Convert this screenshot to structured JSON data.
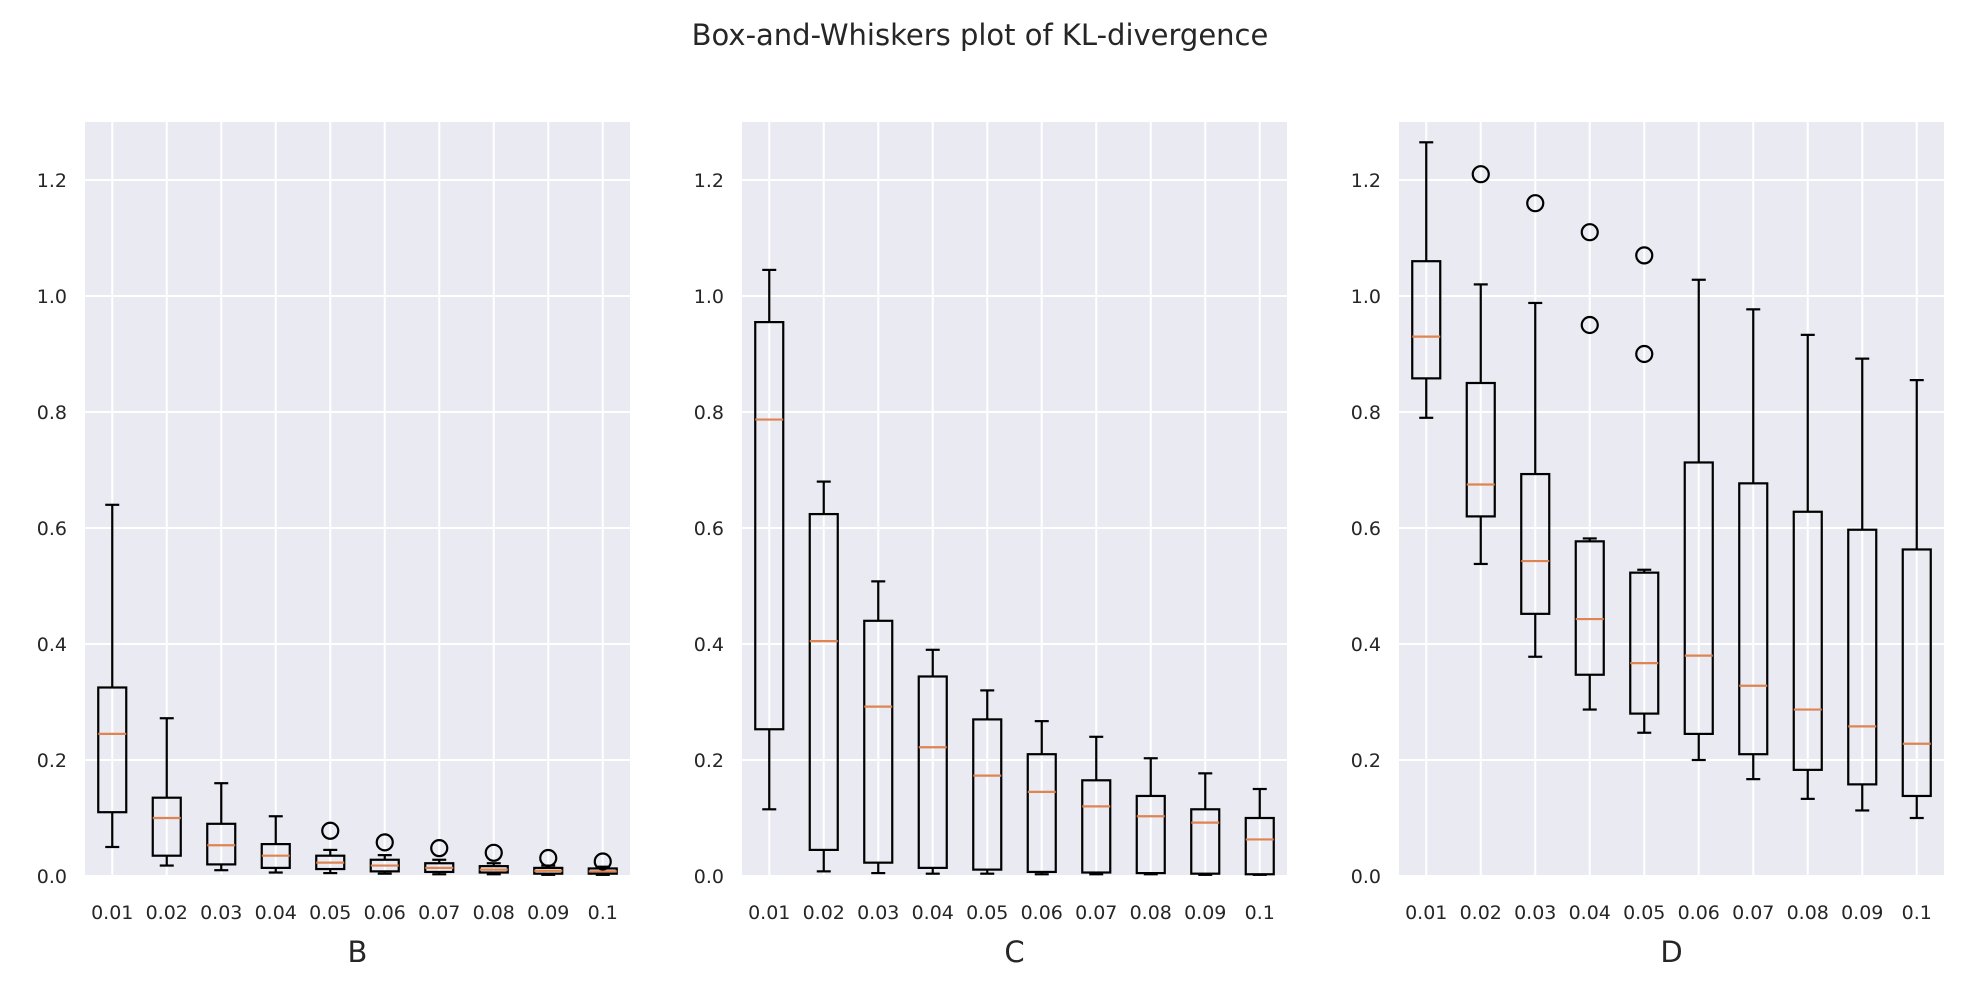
{
  "title": "Box-and-Whiskers plot of KL-divergence",
  "colors": {
    "axes_bg": "#EAEAF2",
    "grid": "#FFFFFF",
    "box": "#000000",
    "median": "#DD8452",
    "text": "#262626"
  },
  "chart_data": [
    {
      "type": "box",
      "xlabel": "B",
      "ylabel": "",
      "ylim": [
        0,
        1.3
      ],
      "yticks": [
        "0.0",
        "0.2",
        "0.4",
        "0.6",
        "0.8",
        "1.0",
        "1.2"
      ],
      "ytick_values": [
        0,
        0.2,
        0.4,
        0.6,
        0.8,
        1.0,
        1.2
      ],
      "grid": true,
      "categories": [
        "0.01",
        "0.02",
        "0.03",
        "0.04",
        "0.05",
        "0.06",
        "0.07",
        "0.08",
        "0.09",
        "0.1"
      ],
      "boxes": [
        {
          "whislo": 0.05,
          "q1": 0.11,
          "med": 0.245,
          "q3": 0.325,
          "whishi": 0.64,
          "fliers": []
        },
        {
          "whislo": 0.018,
          "q1": 0.035,
          "med": 0.1,
          "q3": 0.135,
          "whishi": 0.272,
          "fliers": []
        },
        {
          "whislo": 0.01,
          "q1": 0.02,
          "med": 0.053,
          "q3": 0.09,
          "whishi": 0.16,
          "fliers": []
        },
        {
          "whislo": 0.006,
          "q1": 0.014,
          "med": 0.035,
          "q3": 0.055,
          "whishi": 0.103,
          "fliers": []
        },
        {
          "whislo": 0.005,
          "q1": 0.012,
          "med": 0.023,
          "q3": 0.035,
          "whishi": 0.045,
          "fliers": [
            0.078
          ]
        },
        {
          "whislo": 0.004,
          "q1": 0.008,
          "med": 0.018,
          "q3": 0.028,
          "whishi": 0.036,
          "fliers": [
            0.058
          ]
        },
        {
          "whislo": 0.003,
          "q1": 0.007,
          "med": 0.014,
          "q3": 0.022,
          "whishi": 0.028,
          "fliers": [
            0.048
          ]
        },
        {
          "whislo": 0.003,
          "q1": 0.006,
          "med": 0.011,
          "q3": 0.017,
          "whishi": 0.022,
          "fliers": [
            0.04
          ]
        },
        {
          "whislo": 0.002,
          "q1": 0.004,
          "med": 0.009,
          "q3": 0.014,
          "whishi": 0.018,
          "fliers": [
            0.031
          ]
        },
        {
          "whislo": 0.002,
          "q1": 0.004,
          "med": 0.008,
          "q3": 0.013,
          "whishi": 0.016,
          "fliers": [
            0.025
          ]
        }
      ]
    },
    {
      "type": "box",
      "xlabel": "C",
      "ylabel": "",
      "ylim": [
        0,
        1.3
      ],
      "yticks": [
        "0.0",
        "0.2",
        "0.4",
        "0.6",
        "0.8",
        "1.0",
        "1.2"
      ],
      "ytick_values": [
        0,
        0.2,
        0.4,
        0.6,
        0.8,
        1.0,
        1.2
      ],
      "grid": true,
      "categories": [
        "0.01",
        "0.02",
        "0.03",
        "0.04",
        "0.05",
        "0.06",
        "0.07",
        "0.08",
        "0.09",
        "0.1"
      ],
      "boxes": [
        {
          "whislo": 0.115,
          "q1": 0.253,
          "med": 0.787,
          "q3": 0.955,
          "whishi": 1.045,
          "fliers": []
        },
        {
          "whislo": 0.008,
          "q1": 0.045,
          "med": 0.405,
          "q3": 0.624,
          "whishi": 0.68,
          "fliers": []
        },
        {
          "whislo": 0.005,
          "q1": 0.023,
          "med": 0.292,
          "q3": 0.44,
          "whishi": 0.508,
          "fliers": []
        },
        {
          "whislo": 0.004,
          "q1": 0.014,
          "med": 0.222,
          "q3": 0.344,
          "whishi": 0.39,
          "fliers": []
        },
        {
          "whislo": 0.004,
          "q1": 0.011,
          "med": 0.173,
          "q3": 0.27,
          "whishi": 0.32,
          "fliers": []
        },
        {
          "whislo": 0.003,
          "q1": 0.007,
          "med": 0.145,
          "q3": 0.21,
          "whishi": 0.267,
          "fliers": []
        },
        {
          "whislo": 0.003,
          "q1": 0.006,
          "med": 0.12,
          "q3": 0.165,
          "whishi": 0.24,
          "fliers": []
        },
        {
          "whislo": 0.003,
          "q1": 0.005,
          "med": 0.103,
          "q3": 0.138,
          "whishi": 0.203,
          "fliers": []
        },
        {
          "whislo": 0.002,
          "q1": 0.004,
          "med": 0.092,
          "q3": 0.115,
          "whishi": 0.177,
          "fliers": []
        },
        {
          "whislo": 0.002,
          "q1": 0.003,
          "med": 0.063,
          "q3": 0.1,
          "whishi": 0.15,
          "fliers": []
        }
      ]
    },
    {
      "type": "box",
      "xlabel": "D",
      "ylabel": "",
      "ylim": [
        0,
        1.3
      ],
      "yticks": [
        "0.0",
        "0.2",
        "0.4",
        "0.6",
        "0.8",
        "1.0",
        "1.2"
      ],
      "ytick_values": [
        0,
        0.2,
        0.4,
        0.6,
        0.8,
        1.0,
        1.2
      ],
      "grid": true,
      "categories": [
        "0.01",
        "0.02",
        "0.03",
        "0.04",
        "0.05",
        "0.06",
        "0.07",
        "0.08",
        "0.09",
        "0.1"
      ],
      "boxes": [
        {
          "whislo": 0.79,
          "q1": 0.858,
          "med": 0.93,
          "q3": 1.06,
          "whishi": 1.265,
          "fliers": []
        },
        {
          "whislo": 0.538,
          "q1": 0.62,
          "med": 0.675,
          "q3": 0.85,
          "whishi": 1.02,
          "fliers": [
            1.21
          ]
        },
        {
          "whislo": 0.378,
          "q1": 0.452,
          "med": 0.543,
          "q3": 0.693,
          "whishi": 0.988,
          "fliers": [
            1.16
          ]
        },
        {
          "whislo": 0.287,
          "q1": 0.347,
          "med": 0.443,
          "q3": 0.577,
          "whishi": 0.582,
          "fliers": [
            0.95,
            1.11
          ]
        },
        {
          "whislo": 0.247,
          "q1": 0.28,
          "med": 0.367,
          "q3": 0.523,
          "whishi": 0.528,
          "fliers": [
            0.9,
            1.07
          ]
        },
        {
          "whislo": 0.2,
          "q1": 0.245,
          "med": 0.38,
          "q3": 0.713,
          "whishi": 1.028,
          "fliers": []
        },
        {
          "whislo": 0.167,
          "q1": 0.21,
          "med": 0.328,
          "q3": 0.677,
          "whishi": 0.977,
          "fliers": []
        },
        {
          "whislo": 0.133,
          "q1": 0.183,
          "med": 0.287,
          "q3": 0.628,
          "whishi": 0.933,
          "fliers": []
        },
        {
          "whislo": 0.113,
          "q1": 0.158,
          "med": 0.258,
          "q3": 0.597,
          "whishi": 0.892,
          "fliers": []
        },
        {
          "whislo": 0.1,
          "q1": 0.138,
          "med": 0.228,
          "q3": 0.563,
          "whishi": 0.855,
          "fliers": []
        }
      ]
    }
  ]
}
